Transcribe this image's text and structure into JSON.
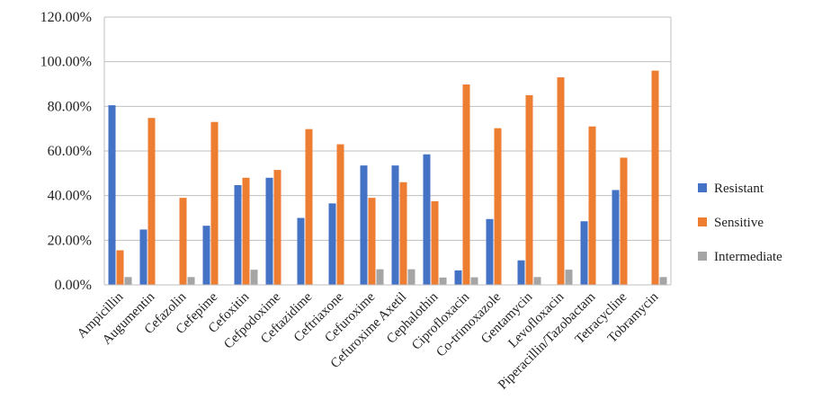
{
  "chart_data": {
    "type": "bar",
    "title": "",
    "xlabel": "",
    "ylabel": "",
    "ylim": [
      0,
      120
    ],
    "yticks": [
      "0.00%",
      "20.00%",
      "40.00%",
      "60.00%",
      "80.00%",
      "100.00%",
      "120.00%"
    ],
    "grid": "horizontal",
    "legend_position": "right",
    "categories": [
      "Ampicillin",
      "Augumentin",
      "Cefazolin",
      "Cefepime",
      "Cefoxitin",
      "Cefpodoxime",
      "Ceftazidime",
      "Ceftriaxone",
      "Cefuroxime",
      "Cefuroxime Axetil",
      "Cephalothin",
      "Ciprofloxacin",
      "Co-trimoxazole",
      "Gentamycin",
      "Levofloxacin",
      "Piperacillin/Tazobactam",
      "Tetracycline",
      "Tobramycin"
    ],
    "series": [
      {
        "name": "Resistant",
        "color": "#4472C4",
        "values": [
          80.5,
          24.8,
          0,
          26.5,
          44.7,
          48.0,
          30.0,
          36.5,
          53.5,
          53.5,
          58.5,
          6.5,
          29.5,
          11.0,
          0,
          28.5,
          42.5,
          0
        ]
      },
      {
        "name": "Sensitive",
        "color": "#ED7D31",
        "values": [
          15.5,
          74.8,
          39.0,
          73.0,
          48.0,
          51.5,
          69.8,
          63.0,
          39.0,
          46.0,
          37.5,
          89.8,
          70.2,
          85.0,
          93.0,
          71.0,
          57.0,
          96.0
        ]
      },
      {
        "name": "Intermediate",
        "color": "#A5A5A5",
        "values": [
          3.5,
          0,
          3.5,
          0,
          6.8,
          0,
          0,
          0,
          7.0,
          7.0,
          3.3,
          3.4,
          0,
          3.5,
          6.8,
          0,
          0,
          3.5
        ]
      }
    ]
  }
}
